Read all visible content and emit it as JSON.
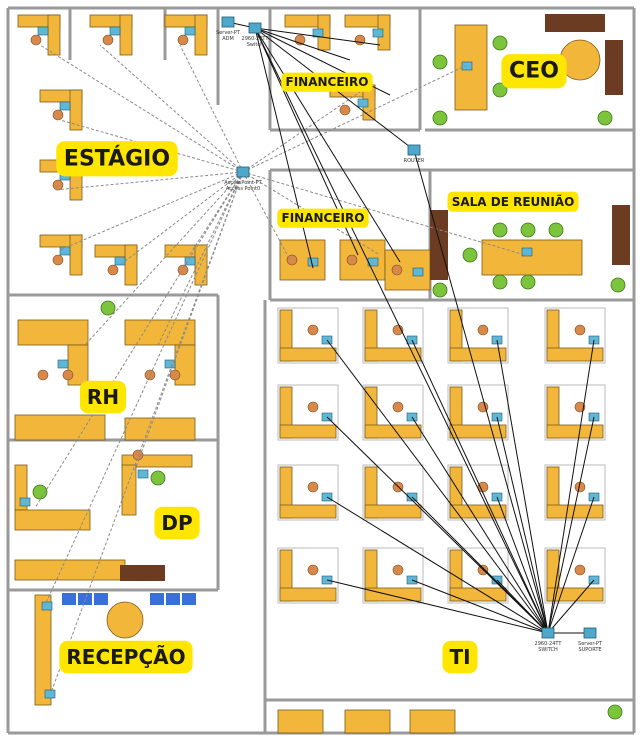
{
  "rooms": [
    {
      "id": "estagio",
      "label": "ESTÁGIO"
    },
    {
      "id": "financeiro_top",
      "label": "FINANCEIRO"
    },
    {
      "id": "ceo",
      "label": "CEO"
    },
    {
      "id": "financeiro_mid",
      "label": "FINANCEIRO"
    },
    {
      "id": "sala_reuniao",
      "label": "SALA DE REUNIÃO"
    },
    {
      "id": "rh",
      "label": "RH"
    },
    {
      "id": "dp",
      "label": "DP"
    },
    {
      "id": "recepcao",
      "label": "RECEPÇÃO"
    },
    {
      "id": "ti",
      "label": "TI"
    }
  ],
  "devices": {
    "server_adm": {
      "label": "Server-PT\nADM"
    },
    "switch_top": {
      "label": "2960-24TT\nSwitch"
    },
    "access_point": {
      "label": "AccessPoint-PT\nAccess Point0"
    },
    "router": {
      "label": "ROUTER"
    },
    "switch_ti": {
      "label": "2960-24TT\nSWITCH"
    },
    "server_suporte": {
      "label": "Server-PT\nSUPORTE"
    }
  },
  "colors": {
    "desk": "#f2b73a",
    "label_bg": "#ffe600",
    "wall": "#9a9a9a",
    "chair": "#d8894a",
    "plant": "#7cc43c",
    "sofa": "#6b3b22",
    "cable": "#111111",
    "wireless": "#8a8a8a"
  }
}
